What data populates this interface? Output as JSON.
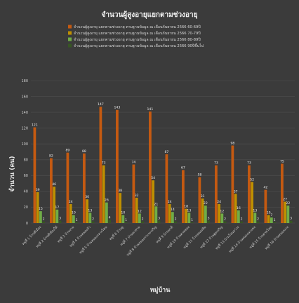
{
  "chart_data": {
    "type": "bar",
    "title": "จำนวนผู้สูงอายุแยกตามช่วงอายุ",
    "xlabel": "หมู่บ้าน",
    "ylabel": "จำนวน (คน)",
    "ylim": [
      0,
      180
    ],
    "yticks": [
      0,
      20,
      40,
      60,
      80,
      100,
      120,
      140,
      160,
      180
    ],
    "grid": true,
    "legend_position": "top",
    "categories": [
      "หมู่ที่ 1 บ้านตีเมือง",
      "หมู่ที่ 2 บ้านตีเมืองใต้",
      "หมู่ที่ 3 บ้านงาม",
      "หมู่ที่ 4 บ้านหนองบัว",
      "หมู่ที่ 5 บ้านหนองกลางโคน",
      "หมู่ที่ 6 บ้านดู",
      "หมู่ที่ 7 บ้านนาสาม",
      "หมู่ที่ 8 บ้านหนองกระจะเจริญ",
      "หมู่ที่ 9 บ้านนาดี",
      "หมู่ที่ 10 บ้านตาดทอง",
      "หมู่ที่ 11 บ้านหนองสิม",
      "หมู่ที่ 12 บ้านตูมเจริญ",
      "หมู่ที่ 13 บ้านโนนสว่าง",
      "หมู่ที่ 14 บ้านหนองนาแซง",
      "หมู่ที่ 15 บ้านตาดใหม่",
      "หมู่ที่ 16 บ้านหนองแวง"
    ],
    "series": [
      {
        "name": "จำนวนผู้สูงอายุ แยกตามช่วงอายุ ตามฐานข้อมูล ณ เดือนกันยายน 2566 60-69ปี",
        "color": "#c55a11",
        "values": [
          121,
          82,
          89,
          88,
          147,
          143,
          74,
          141,
          87,
          67,
          58,
          73,
          98,
          73,
          42,
          75
        ]
      },
      {
        "name": "จำนวนผู้สูงอายุ แยกตามช่วงอายุ ตามฐานข้อมูล ณ เดือนกันยายน 2566 70-79ปี",
        "color": "#bf9000",
        "values": [
          39,
          46,
          24,
          30,
          73,
          38,
          32,
          54,
          24,
          18,
          31,
          24,
          37,
          52,
          10,
          27
        ]
      },
      {
        "name": "จำนวนผู้สูงอายุ แยกตามช่วงอายุ ตามฐานข้อมูล ณ เดือนกันยายน 2566 80-89ปี",
        "color": "#70ad47",
        "values": [
          15,
          17,
          10,
          13,
          26,
          10,
          12,
          21,
          14,
          13,
          22,
          12,
          16,
          13,
          7,
          22
        ]
      },
      {
        "name": "จำนวนผู้สูงอายุ แยกตามช่วงอายุ ตามฐานข้อมูล ณ เดือนกันยายน 2566 90ปีขึ้นไป",
        "color": "#375623",
        "values": [
          2,
          3,
          1,
          2,
          4,
          1,
          2,
          3,
          2,
          1,
          3,
          2,
          2,
          2,
          1,
          3
        ]
      }
    ]
  }
}
